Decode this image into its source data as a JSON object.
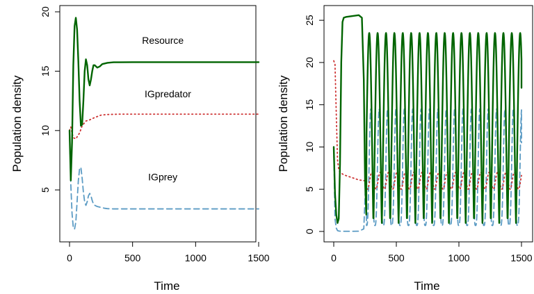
{
  "colors": {
    "resource": "#006400",
    "igpredator": "#CD3333",
    "igprey": "#5B9BC4"
  },
  "chart_data": [
    {
      "type": "line",
      "xlabel": "Time",
      "ylabel": "Population density",
      "xlim": [
        0,
        1500
      ],
      "ylim": [
        1.5,
        20
      ],
      "xticks": [
        0,
        500,
        1000,
        1500
      ],
      "yticks": [
        5,
        10,
        15,
        20
      ],
      "series": [
        {
          "name": "Resource",
          "line_style": "solid",
          "color": "#006400",
          "x": [
            0,
            10,
            20,
            30,
            40,
            50,
            60,
            70,
            80,
            90,
            100,
            110,
            120,
            130,
            140,
            150,
            160,
            170,
            180,
            190,
            200,
            220,
            240,
            260,
            280,
            300,
            320,
            350,
            400,
            500,
            700,
            1000,
            1500
          ],
          "y": [
            10,
            5.8,
            9.0,
            15.5,
            18.8,
            19.5,
            18.5,
            15.8,
            12.5,
            10.4,
            10.5,
            12.5,
            15.0,
            16.0,
            15.5,
            14.3,
            13.8,
            14.3,
            15.0,
            15.5,
            15.5,
            15.3,
            15.4,
            15.6,
            15.65,
            15.7,
            15.72,
            15.75,
            15.75,
            15.76,
            15.76,
            15.76,
            15.76
          ]
        },
        {
          "name": "IGpredator",
          "line_style": "dotted",
          "color": "#CD3333",
          "x": [
            0,
            10,
            20,
            30,
            50,
            80,
            100,
            130,
            160,
            200,
            250,
            300,
            400,
            500,
            700,
            1000,
            1500
          ],
          "y": [
            10,
            10.3,
            9.8,
            9.4,
            9.3,
            9.8,
            10.4,
            10.8,
            10.9,
            11.1,
            11.3,
            11.35,
            11.38,
            11.38,
            11.38,
            11.38,
            11.38
          ]
        },
        {
          "name": "IGprey",
          "line_style": "dashed",
          "color": "#5B9BC4",
          "x": [
            0,
            10,
            20,
            30,
            40,
            50,
            60,
            70,
            80,
            90,
            100,
            110,
            120,
            130,
            140,
            150,
            160,
            170,
            180,
            190,
            200,
            220,
            240,
            260,
            280,
            300,
            350,
            400,
            500,
            700,
            1000,
            1500
          ],
          "y": [
            10,
            5.5,
            3.0,
            1.8,
            1.7,
            2.3,
            4.0,
            5.8,
            6.8,
            6.9,
            6.0,
            4.8,
            4.0,
            3.7,
            4.0,
            4.5,
            4.7,
            4.5,
            4.1,
            3.8,
            3.7,
            3.6,
            3.55,
            3.5,
            3.45,
            3.42,
            3.4,
            3.4,
            3.4,
            3.4,
            3.4,
            3.4
          ]
        }
      ],
      "annotations": [
        {
          "text": "Resource",
          "x": 740,
          "y": 17.3,
          "series": "Resource"
        },
        {
          "text": "IGpredator",
          "x": 780,
          "y": 12.8,
          "series": "IGpredator"
        },
        {
          "text": "IGprey",
          "x": 740,
          "y": 5.8,
          "series": "IGprey"
        }
      ]
    },
    {
      "type": "line",
      "xlabel": "Time",
      "ylabel": "Population density",
      "xlim": [
        0,
        1500
      ],
      "ylim": [
        0,
        26
      ],
      "xticks": [
        0,
        500,
        1000,
        1500
      ],
      "yticks": [
        0,
        5,
        10,
        15,
        20,
        25
      ],
      "oscillation": {
        "start": 250,
        "period": 67,
        "resource": {
          "min": 1.0,
          "max": 23.5
        },
        "igprey": {
          "min": 0.7,
          "max": 14.5
        },
        "igpredator": {
          "min": 5.0,
          "max": 7.0
        }
      },
      "series": [
        {
          "name": "Resource",
          "line_style": "solid",
          "color": "#006400",
          "x": [
            0,
            10,
            20,
            30,
            40,
            50,
            60,
            70,
            80,
            100,
            150,
            200,
            225,
            240,
            250,
            260
          ],
          "y": [
            10,
            4.5,
            2.0,
            1.0,
            1.5,
            8.0,
            20.0,
            24.8,
            25.3,
            25.4,
            25.5,
            25.6,
            25.3,
            18.0,
            6.0,
            2.0
          ],
          "end": {
            "x": 1500,
            "y": 17.0
          }
        },
        {
          "name": "IGpredator",
          "line_style": "dotted",
          "color": "#CD3333",
          "x": [
            0,
            10,
            20,
            30,
            40,
            50,
            80,
            120,
            160,
            200,
            250
          ],
          "y": [
            20.2,
            19.8,
            14.0,
            8.5,
            7.3,
            7.0,
            6.7,
            6.5,
            6.3,
            6.1,
            6.0
          ],
          "end": {
            "x": 1500,
            "y": 6.3
          }
        },
        {
          "name": "IGprey",
          "line_style": "dashed",
          "color": "#5B9BC4",
          "x": [
            0,
            10,
            20,
            30,
            40,
            60,
            100,
            150,
            200,
            240,
            250,
            260
          ],
          "y": [
            10,
            1.5,
            0.4,
            0.1,
            0.05,
            0.02,
            0.02,
            0.02,
            0.03,
            0.3,
            4.0,
            9.0
          ],
          "end": {
            "x": 1500,
            "y": 10.5
          }
        }
      ]
    }
  ]
}
